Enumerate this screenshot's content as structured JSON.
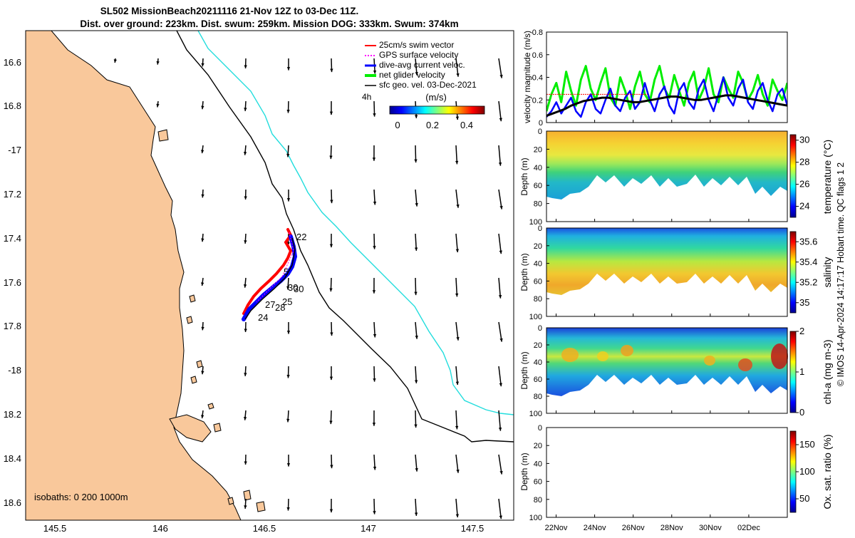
{
  "header": {
    "line1": "SL502 MissionBeach20211116 21-Nov 12Z to 03-Dec 11Z.",
    "line2": "Dist. over ground: 223km. Dist. swum: 259km. Mission DOG: 333km. Swum: 374km"
  },
  "colors": {
    "land": "#f9c89b",
    "swim_vector": "#ff0000",
    "gps_velocity": "#ff00ff",
    "dive_avg_current": "#0000ff",
    "net_glider_velocity": "#00ee00",
    "sfc_geo_vel": "#000000",
    "isobath_200": "#000000",
    "isobath_1000": "#22dddd"
  },
  "map": {
    "lon_ticks": [
      "145.5",
      "146",
      "146.5",
      "147",
      "147.5"
    ],
    "lat_ticks": [
      "16.6",
      "16.8",
      "-17",
      "17.2",
      "17.4",
      "17.6",
      "17.8",
      "-18",
      "18.2",
      "18.4",
      "18.6"
    ],
    "isobaths_label": "isobaths: 0   200  1000m",
    "legend": {
      "items": [
        {
          "label": "25cm/s swim vector",
          "color": "#ff0000"
        },
        {
          "label": "GPS surface velocity",
          "color": "#ff00ff"
        },
        {
          "label": "dive-avg current veloc.",
          "color": "#0000ff"
        },
        {
          "label": "net glider velocity",
          "color": "#00ee00"
        },
        {
          "label": "sfc geo. vel. 03-Dec-2021",
          "color": "#000000"
        }
      ],
      "interval_label": "4h",
      "colorbar_title": "(m/s)",
      "colorbar_ticks": [
        "0",
        "0.2",
        "0.4"
      ]
    },
    "day_labels": [
      "22",
      "5",
      "30",
      "30",
      "25",
      "27",
      "28",
      "24"
    ]
  },
  "chart_data": [
    {
      "type": "line",
      "title": "",
      "ylabel": "velocity magnitude (m/s)",
      "ylim": [
        0,
        0.8
      ],
      "yticks": [
        "0",
        "0.2",
        "0.4",
        "0.6",
        "0.8"
      ],
      "xlim": [
        21.5,
        34.0
      ],
      "x_ticks": [
        "22Nov",
        "24Nov",
        "26Nov",
        "28Nov",
        "30Nov",
        "02Dec"
      ],
      "series": [
        {
          "name": "net glider velocity",
          "color": "#00ee00",
          "values": [
            0.1,
            0.25,
            0.35,
            0.18,
            0.45,
            0.28,
            0.15,
            0.38,
            0.5,
            0.3,
            0.2,
            0.35,
            0.48,
            0.22,
            0.15,
            0.4,
            0.28,
            0.12,
            0.32,
            0.45,
            0.25,
            0.18,
            0.38,
            0.5,
            0.3,
            0.22,
            0.42,
            0.28,
            0.15,
            0.35,
            0.45,
            0.2,
            0.3,
            0.48,
            0.25,
            0.18,
            0.4,
            0.3,
            0.22,
            0.45,
            0.35,
            0.2,
            0.28,
            0.42,
            0.25,
            0.15,
            0.38,
            0.28,
            0.2,
            0.35
          ]
        },
        {
          "name": "dive-avg current veloc.",
          "color": "#0000ff",
          "values": [
            0.05,
            0.1,
            0.18,
            0.08,
            0.15,
            0.22,
            0.1,
            0.05,
            0.18,
            0.25,
            0.12,
            0.08,
            0.2,
            0.3,
            0.15,
            0.1,
            0.22,
            0.28,
            0.12,
            0.18,
            0.35,
            0.2,
            0.1,
            0.25,
            0.32,
            0.15,
            0.08,
            0.28,
            0.35,
            0.18,
            0.12,
            0.3,
            0.38,
            0.2,
            0.1,
            0.25,
            0.4,
            0.22,
            0.15,
            0.3,
            0.38,
            0.18,
            0.12,
            0.28,
            0.35,
            0.2,
            0.1,
            0.25,
            0.3,
            0.15
          ]
        },
        {
          "name": "sfc geo. vel.",
          "color": "#000000",
          "values": [
            0.06,
            0.08,
            0.1,
            0.12,
            0.15,
            0.17,
            0.19,
            0.2,
            0.21,
            0.22,
            0.22,
            0.21,
            0.2,
            0.19,
            0.18,
            0.18,
            0.19,
            0.2,
            0.21,
            0.22,
            0.23,
            0.23,
            0.22,
            0.21,
            0.2,
            0.2,
            0.21,
            0.22,
            0.23,
            0.24,
            0.24,
            0.23,
            0.22,
            0.21,
            0.2,
            0.19,
            0.18,
            0.17,
            0.16,
            0.15
          ]
        },
        {
          "name": "25cm/s swim vector",
          "color": "#ff0000",
          "constant": 0.25
        }
      ]
    },
    {
      "type": "heatmap",
      "ylabel": "Depth (m)",
      "colorbar_label": "temperature (°C)",
      "yticks": [
        "0",
        "20",
        "40",
        "60",
        "80",
        "100"
      ],
      "ylim": [
        100,
        0
      ],
      "colorbar_ticks": [
        "24",
        "26",
        "28",
        "30"
      ],
      "crange": [
        23,
        30.5
      ]
    },
    {
      "type": "heatmap",
      "ylabel": "Depth (m)",
      "colorbar_label": "salinity",
      "yticks": [
        "0",
        "20",
        "40",
        "60",
        "80",
        "100"
      ],
      "ylim": [
        100,
        0
      ],
      "colorbar_ticks": [
        "35",
        "35.2",
        "35.4",
        "35.6"
      ],
      "crange": [
        34.9,
        35.7
      ]
    },
    {
      "type": "heatmap",
      "ylabel": "Depth (m)",
      "colorbar_label": "chl-a (mg m-3)",
      "yticks": [
        "0",
        "20",
        "40",
        "60",
        "80",
        "100"
      ],
      "ylim": [
        100,
        0
      ],
      "colorbar_ticks": [
        "0",
        "1",
        "2"
      ],
      "crange": [
        0,
        2
      ]
    },
    {
      "type": "heatmap",
      "ylabel": "Depth (m)",
      "colorbar_label": "Ox. sat. ratio (%)",
      "yticks": [
        "0",
        "20",
        "40",
        "60",
        "80",
        "100"
      ],
      "ylim": [
        100,
        0
      ],
      "colorbar_ticks": [
        "50",
        "100",
        "150"
      ],
      "crange": [
        25,
        175
      ]
    }
  ],
  "footer": {
    "credit": "© IMOS 14-Apr-2024 14:17:17 Hobart time. QC flags 1  2"
  }
}
